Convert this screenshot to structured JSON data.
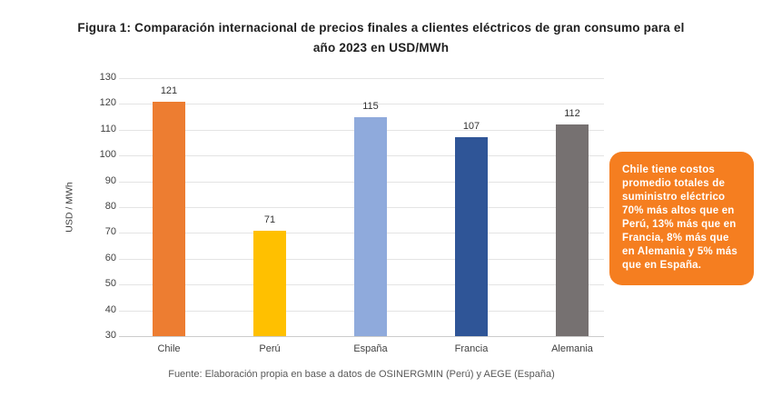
{
  "title": {
    "line1": "Figura 1: Comparación internacional de precios finales a clientes eléctricos de gran consumo para el",
    "line2": "año 2023 en USD/MWh"
  },
  "chart_data": {
    "type": "bar",
    "title": "Figura 1: Comparación internacional de precios finales a clientes eléctricos de gran consumo para el año 2023 en USD/MWh",
    "categories": [
      "Chile",
      "Perú",
      "España",
      "Francia",
      "Alemania"
    ],
    "values": [
      121,
      71,
      115,
      107,
      112
    ],
    "bar_colors": [
      "#ED7D31",
      "#FFC000",
      "#8FAADC",
      "#2F5597",
      "#767171"
    ],
    "xlabel": "",
    "ylabel": "USD / MWh",
    "ylim": [
      30,
      130
    ],
    "ytick_step": 10,
    "grid": true,
    "legend": false,
    "value_labels": true
  },
  "callout": {
    "text": "Chile tiene costos promedio totales de suministro eléctrico 70% más altos que en Perú, 13% más que en Francia, 8% más que en Alemania y 5% más que en España.",
    "bg_color": "#F57E20",
    "text_color": "#FFFFFF"
  },
  "source": "Fuente: Elaboración propia en base a datos de OSINERGMIN (Perú) y AEGE (España)"
}
